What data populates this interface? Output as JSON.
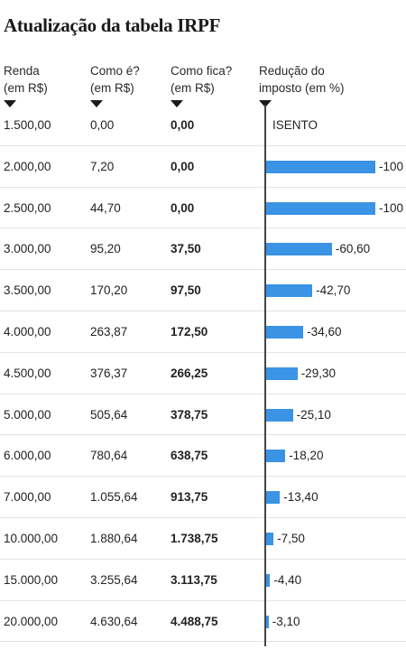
{
  "title": "Atualização da tabela IRPF",
  "headers": {
    "renda": [
      "Renda",
      "(em R$)"
    ],
    "como_e": [
      "Como é?",
      "(em R$)"
    ],
    "como_fica": [
      "Como fica?",
      "(em R$)"
    ],
    "reducao": [
      "Redução do",
      "imposto (em %)"
    ]
  },
  "exempt_label": "ISENTO",
  "colors": {
    "bar": "#3a93e4",
    "axis": "#444444",
    "divider": "#e3e3e3"
  },
  "chart_data": {
    "type": "bar",
    "orientation": "horizontal",
    "title": "Atualização da tabela IRPF",
    "xlabel": "Redução do imposto (em %)",
    "xlim": [
      -100,
      0
    ],
    "categories": [
      "1.500,00",
      "2.000,00",
      "2.500,00",
      "3.000,00",
      "3.500,00",
      "4.000,00",
      "4.500,00",
      "5.000,00",
      "6.000,00",
      "7.000,00",
      "10.000,00",
      "15.000,00",
      "20.000,00"
    ],
    "values": [
      null,
      -100,
      -100,
      -60.6,
      -42.7,
      -34.6,
      -29.3,
      -25.1,
      -18.2,
      -13.4,
      -7.5,
      -4.4,
      -3.1
    ],
    "value_labels": [
      "ISENTO",
      "-100",
      "-100",
      "-60,60",
      "-42,70",
      "-34,60",
      "-29,30",
      "-25,10",
      "-18,20",
      "-13,40",
      "-7,50",
      "-4,40",
      "-3,10"
    ],
    "table": [
      {
        "renda": "1.500,00",
        "como_e": "0,00",
        "como_fica": "0,00"
      },
      {
        "renda": "2.000,00",
        "como_e": "7,20",
        "como_fica": "0,00"
      },
      {
        "renda": "2.500,00",
        "como_e": "44,70",
        "como_fica": "0,00"
      },
      {
        "renda": "3.000,00",
        "como_e": "95,20",
        "como_fica": "37,50"
      },
      {
        "renda": "3.500,00",
        "como_e": "170,20",
        "como_fica": "97,50"
      },
      {
        "renda": "4.000,00",
        "como_e": "263,87",
        "como_fica": "172,50"
      },
      {
        "renda": "4.500,00",
        "como_e": "376,37",
        "como_fica": "266,25"
      },
      {
        "renda": "5.000,00",
        "como_e": "505,64",
        "como_fica": "378,75"
      },
      {
        "renda": "6.000,00",
        "como_e": "780,64",
        "como_fica": "638,75"
      },
      {
        "renda": "7.000,00",
        "como_e": "1.055,64",
        "como_fica": "913,75"
      },
      {
        "renda": "10.000,00",
        "como_e": "1.880,64",
        "como_fica": "1.738,75"
      },
      {
        "renda": "15.000,00",
        "como_e": "3.255,64",
        "como_fica": "3.113,75"
      },
      {
        "renda": "20.000,00",
        "como_e": "4.630,64",
        "como_fica": "4.488,75"
      }
    ]
  }
}
